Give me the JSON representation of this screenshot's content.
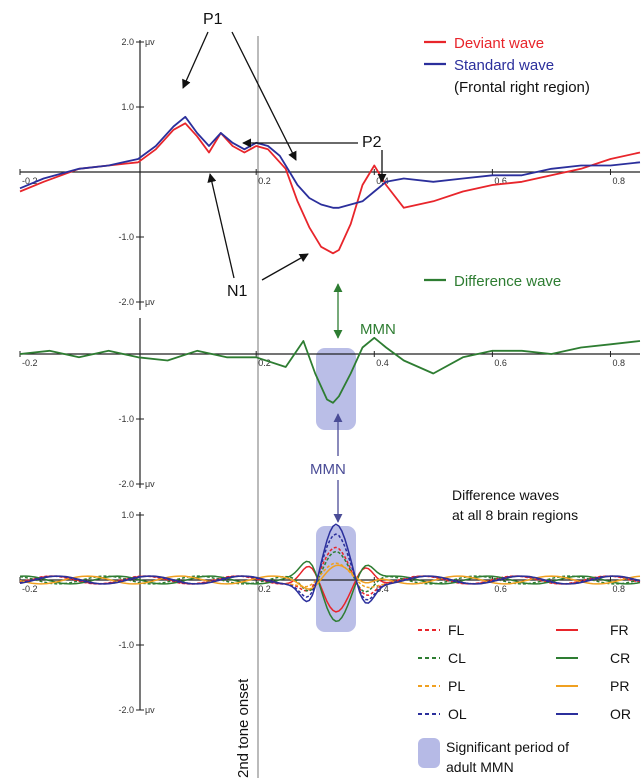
{
  "chart_data": [
    {
      "type": "line",
      "xlim": [
        -0.2,
        0.85
      ],
      "ylim": [
        -2.0,
        2.0
      ],
      "x_ticks": [
        "-0.2",
        "0.2",
        "0.4",
        "0.6",
        "0.8"
      ],
      "y_ticks": [
        "2.0",
        "1.0",
        "-1.0",
        "-2.0"
      ],
      "y_unit": "μv",
      "legend_placement": "top-right",
      "legend_note": "(Frontal right region)",
      "series": [
        {
          "name": "Deviant wave",
          "color": "#e8252b",
          "x": [
            -0.2,
            -0.16,
            -0.1,
            -0.05,
            0,
            0.03,
            0.06,
            0.08,
            0.1,
            0.12,
            0.14,
            0.16,
            0.18,
            0.2,
            0.22,
            0.24,
            0.25,
            0.27,
            0.29,
            0.31,
            0.33,
            0.34,
            0.36,
            0.38,
            0.4,
            0.42,
            0.45,
            0.5,
            0.55,
            0.6,
            0.65,
            0.7,
            0.75,
            0.8,
            0.85
          ],
          "y": [
            -0.3,
            -0.15,
            0.05,
            0.1,
            0.15,
            0.35,
            0.65,
            0.75,
            0.55,
            0.3,
            0.6,
            0.4,
            0.3,
            0.4,
            0.35,
            0.15,
            0.05,
            -0.45,
            -0.85,
            -1.15,
            -1.25,
            -1.2,
            -0.8,
            -0.2,
            0.1,
            -0.2,
            -0.55,
            -0.45,
            -0.3,
            -0.2,
            -0.15,
            -0.05,
            0.05,
            0.2,
            0.3
          ]
        },
        {
          "name": "Standard wave",
          "color": "#2b2f9c",
          "x": [
            -0.2,
            -0.16,
            -0.1,
            -0.05,
            0,
            0.03,
            0.06,
            0.08,
            0.1,
            0.12,
            0.14,
            0.16,
            0.18,
            0.2,
            0.22,
            0.24,
            0.25,
            0.27,
            0.29,
            0.31,
            0.33,
            0.34,
            0.36,
            0.38,
            0.4,
            0.42,
            0.45,
            0.5,
            0.55,
            0.6,
            0.65,
            0.7,
            0.75,
            0.8,
            0.85
          ],
          "y": [
            -0.25,
            -0.1,
            0.05,
            0.1,
            0.2,
            0.4,
            0.7,
            0.85,
            0.6,
            0.4,
            0.6,
            0.45,
            0.35,
            0.45,
            0.4,
            0.25,
            0.1,
            -0.2,
            -0.4,
            -0.5,
            -0.55,
            -0.55,
            -0.5,
            -0.45,
            -0.3,
            -0.15,
            -0.1,
            -0.15,
            -0.1,
            -0.05,
            -0.05,
            0.05,
            0.1,
            0.1,
            0.15
          ]
        }
      ],
      "annotations": [
        "P1",
        "P2",
        "N1"
      ]
    },
    {
      "type": "line",
      "xlim": [
        -0.2,
        0.85
      ],
      "ylim": [
        -2.0,
        1.0
      ],
      "x_ticks": [
        "-0.2",
        "0.2",
        "0.4",
        "0.6",
        "0.8"
      ],
      "y_ticks": [
        "-1.0",
        "-2.0"
      ],
      "y_unit": "μv",
      "series": [
        {
          "name": "Difference wave",
          "color": "#2e7d32",
          "x": [
            -0.2,
            -0.15,
            -0.1,
            -0.05,
            0,
            0.05,
            0.1,
            0.15,
            0.2,
            0.25,
            0.28,
            0.3,
            0.32,
            0.33,
            0.34,
            0.36,
            0.38,
            0.4,
            0.42,
            0.45,
            0.5,
            0.55,
            0.6,
            0.65,
            0.7,
            0.75,
            0.8,
            0.85
          ],
          "y": [
            0,
            0.05,
            -0.05,
            0.05,
            -0.05,
            -0.1,
            0.05,
            -0.05,
            -0.05,
            -0.2,
            0.2,
            -0.3,
            -0.7,
            -0.75,
            -0.65,
            -0.3,
            0.1,
            0.25,
            0.1,
            -0.1,
            -0.3,
            -0.05,
            0.05,
            0.05,
            0,
            0.1,
            0.15,
            0.2
          ]
        }
      ],
      "annotations": [
        "MMN",
        "MMN"
      ]
    },
    {
      "type": "line",
      "xlim": [
        -0.2,
        0.85
      ],
      "ylim": [
        -2.0,
        1.0
      ],
      "x_ticks": [
        "-0.2",
        "0.2",
        "0.4",
        "0.6",
        "0.8"
      ],
      "y_ticks": [
        "1.0",
        "-1.0",
        "-2.0"
      ],
      "y_unit": "μv",
      "title": "Difference waves\nat all 8 brain regions",
      "vertical_label": "2nd tone onset",
      "shaded_legend": "Significant period of\nadult MMN",
      "shaded_period_x": [
        0.3,
        0.37
      ],
      "legend_placement": "bottom-right",
      "series": [
        {
          "name": "FL",
          "color": "#e8252b",
          "dashed": true,
          "amp": 0.45,
          "phase": 0.2
        },
        {
          "name": "FR",
          "color": "#e8252b",
          "dashed": false,
          "amp": -0.55,
          "phase": 0
        },
        {
          "name": "CL",
          "color": "#2e7d32",
          "dashed": true,
          "amp": 0.5,
          "phase": 0.3
        },
        {
          "name": "CR",
          "color": "#2e7d32",
          "dashed": false,
          "amp": -0.6,
          "phase": 0
        },
        {
          "name": "PL",
          "color": "#f0a020",
          "dashed": true,
          "amp": 0.2,
          "phase": 0.5
        },
        {
          "name": "PR",
          "color": "#f0a020",
          "dashed": false,
          "amp": 0.25,
          "phase": 0
        },
        {
          "name": "OL",
          "color": "#2b2f9c",
          "dashed": true,
          "amp": 0.65,
          "phase": 0.2
        },
        {
          "name": "OR",
          "color": "#2b2f9c",
          "dashed": false,
          "amp": 0.8,
          "phase": 0
        }
      ]
    }
  ]
}
